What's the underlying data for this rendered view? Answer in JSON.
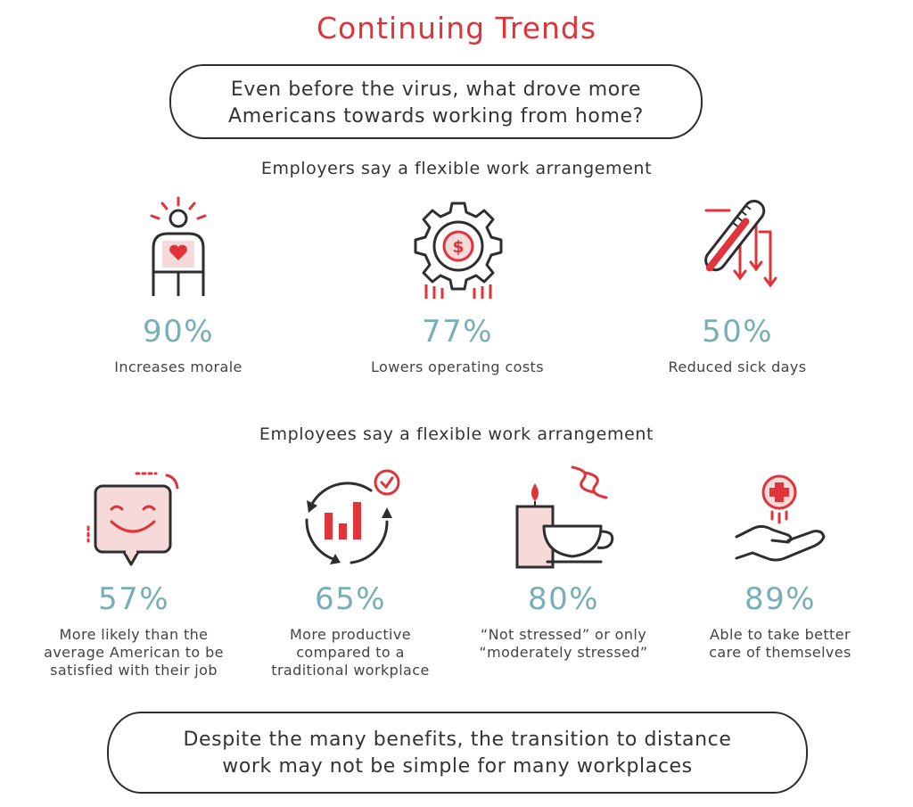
{
  "title": "Continuing Trends",
  "question": {
    "line1": "Even before the virus, what drove more",
    "line2": "Americans towards working from home?"
  },
  "employers": {
    "heading": "Employers say a flexible work arrangement",
    "stats": [
      {
        "icon": "person-heart-icon",
        "value": "90%",
        "label": "Increases morale"
      },
      {
        "icon": "gear-dollar-icon",
        "value": "77%",
        "label": "Lowers operating costs"
      },
      {
        "icon": "thermometer-icon",
        "value": "50%",
        "label": "Reduced sick days"
      }
    ]
  },
  "employees": {
    "heading": "Employees say a flexible work arrangement",
    "stats": [
      {
        "icon": "smiley-chat-icon",
        "value": "57%",
        "lines": [
          "More likely than the",
          "average American to be",
          "satisfied with their job"
        ]
      },
      {
        "icon": "productivity-chart-icon",
        "value": "65%",
        "lines": [
          "More productive",
          "compared to a",
          "traditional workplace"
        ]
      },
      {
        "icon": "candle-teacup-icon",
        "value": "80%",
        "lines": [
          "“Not stressed” or only",
          "“moderately stressed”"
        ]
      },
      {
        "icon": "hand-cross-icon",
        "value": "89%",
        "lines": [
          "Able to take better",
          "care of themselves"
        ]
      }
    ]
  },
  "footer": {
    "line1": "Despite the many benefits, the transition to distance",
    "line2": "work may not be simple for many workplaces"
  },
  "colors": {
    "red": "#e0333a",
    "teal": "#78aeb5",
    "pink": "#f6d9d9",
    "ink": "#2e2e2e"
  }
}
